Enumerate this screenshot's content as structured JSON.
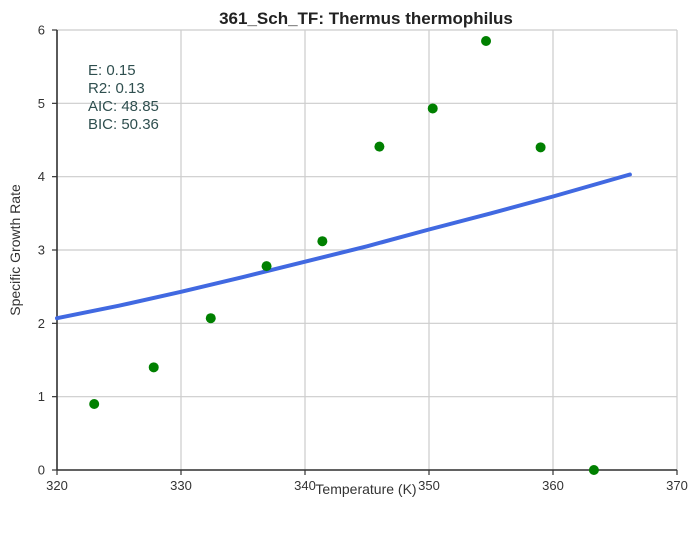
{
  "chart_data": {
    "type": "scatter",
    "title": "361_Sch_TF: Thermus thermophilus",
    "xlabel": "Temperature (K)",
    "ylabel": "Specific Growth Rate",
    "xlim": [
      320,
      370
    ],
    "ylim": [
      0,
      6
    ],
    "xticks": [
      320,
      330,
      340,
      350,
      360,
      370
    ],
    "yticks": [
      0,
      1,
      2,
      3,
      4,
      5,
      6
    ],
    "xtick_labels": [
      "320",
      "330",
      "340",
      "350",
      "360",
      "370"
    ],
    "ytick_labels": [
      "0",
      "1",
      "2",
      "3",
      "4",
      "5",
      "6"
    ],
    "grid": true,
    "points": {
      "x": [
        323.0,
        327.8,
        332.4,
        336.9,
        341.4,
        346.0,
        350.3,
        354.6,
        359.0,
        363.3
      ],
      "y": [
        0.9,
        1.4,
        2.07,
        2.78,
        3.12,
        4.41,
        4.93,
        5.85,
        4.4,
        0.0
      ],
      "color": "#008000"
    },
    "fit": {
      "x": [
        320,
        325,
        330,
        335,
        340,
        345,
        350,
        355,
        360,
        366.2
      ],
      "y": [
        2.07,
        2.24,
        2.43,
        2.63,
        2.84,
        3.05,
        3.28,
        3.5,
        3.73,
        4.03
      ],
      "color": "#4169e1"
    },
    "annotation": [
      "E:  0.15",
      "R2:  0.13",
      "AIC: 48.85",
      "BIC: 50.36"
    ],
    "annotation_color": "#2f4f4f"
  }
}
